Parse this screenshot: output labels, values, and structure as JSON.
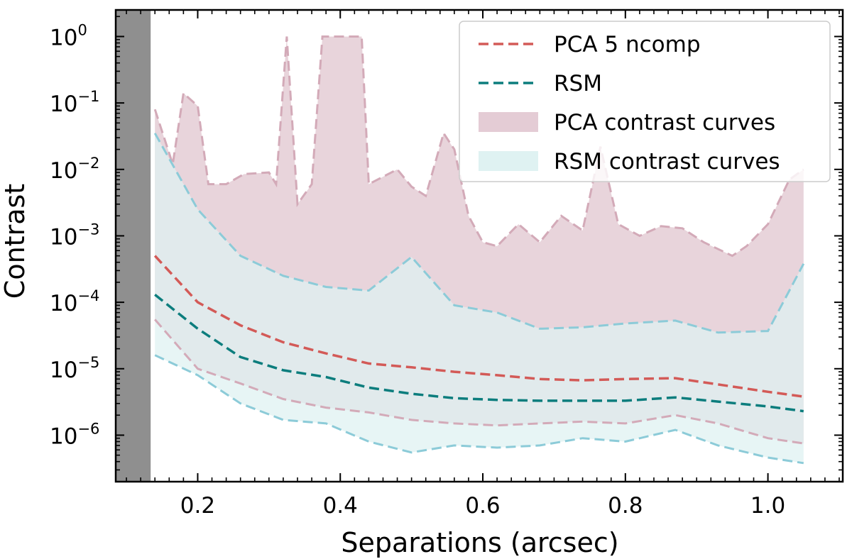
{
  "chart_data": {
    "type": "area",
    "xlabel": "Separations (arcsec)",
    "ylabel": "Contrast",
    "xlim": [
      0.085,
      1.105
    ],
    "ylim_log10": [
      -6.7,
      0.4
    ],
    "yscale": "log",
    "x_ticks": [
      {
        "value": 0.2,
        "label": "0.2"
      },
      {
        "value": 0.4,
        "label": "0.4"
      },
      {
        "value": 0.6,
        "label": "0.6"
      },
      {
        "value": 0.8,
        "label": "0.8"
      },
      {
        "value": 1.0,
        "label": "1.0"
      }
    ],
    "y_ticks": [
      {
        "exp": 0,
        "base": "10",
        "sup": "0"
      },
      {
        "exp": -1,
        "base": "10",
        "sup": "−1"
      },
      {
        "exp": -2,
        "base": "10",
        "sup": "−2"
      },
      {
        "exp": -3,
        "base": "10",
        "sup": "−3"
      },
      {
        "exp": -4,
        "base": "10",
        "sup": "−4"
      },
      {
        "exp": -5,
        "base": "10",
        "sup": "−5"
      },
      {
        "exp": -6,
        "base": "10",
        "sup": "−6"
      }
    ],
    "masked_region": {
      "x_from": 0.085,
      "x_to": 0.134,
      "color": "#8f8f8f"
    },
    "series": [
      {
        "name": "PCA 5 ncomp",
        "kind": "line",
        "color": "#d35a57",
        "x": [
          0.14,
          0.2,
          0.26,
          0.32,
          0.38,
          0.44,
          0.5,
          0.56,
          0.62,
          0.68,
          0.74,
          0.8,
          0.87,
          0.93,
          1.0,
          1.05
        ],
        "y": [
          0.0005,
          0.0001,
          4.5e-05,
          2.5e-05,
          1.7e-05,
          1.2e-05,
          1.05e-05,
          9e-06,
          8e-06,
          7e-06,
          6.7e-06,
          7e-06,
          7.2e-06,
          5.8e-06,
          4.5e-06,
          3.8e-06
        ]
      },
      {
        "name": "RSM",
        "kind": "line",
        "color": "#0c7d7d",
        "x": [
          0.14,
          0.2,
          0.26,
          0.32,
          0.38,
          0.44,
          0.5,
          0.56,
          0.62,
          0.68,
          0.74,
          0.8,
          0.87,
          0.93,
          1.0,
          1.05
        ],
        "y": [
          0.00013,
          4e-05,
          1.5e-05,
          9.5e-06,
          7.5e-06,
          5.2e-06,
          4.2e-06,
          3.6e-06,
          3.4e-06,
          3.3e-06,
          3.3e-06,
          3.3e-06,
          3.7e-06,
          3.2e-06,
          2.7e-06,
          2.3e-06
        ]
      },
      {
        "name": "PCA contrast curves",
        "kind": "band",
        "fill": "#e4ccd5",
        "edge": "#d3aab8",
        "upper": {
          "x": [
            0.14,
            0.165,
            0.18,
            0.2,
            0.215,
            0.24,
            0.265,
            0.3,
            0.31,
            0.325,
            0.34,
            0.36,
            0.375,
            0.385,
            0.43,
            0.44,
            0.48,
            0.5,
            0.52,
            0.545,
            0.56,
            0.58,
            0.6,
            0.62,
            0.65,
            0.68,
            0.71,
            0.74,
            0.765,
            0.79,
            0.82,
            0.85,
            0.88,
            0.91,
            0.95,
            0.97,
            1.0,
            1.03,
            1.05
          ],
          "y": [
            0.08,
            0.012,
            0.14,
            0.09,
            0.006,
            0.006,
            0.0085,
            0.009,
            0.006,
            1.0,
            0.003,
            0.006,
            1.0,
            1.0,
            1.0,
            0.006,
            0.01,
            0.0055,
            0.004,
            0.035,
            0.02,
            0.002,
            0.0008,
            0.0007,
            0.0015,
            0.0008,
            0.002,
            0.0012,
            0.022,
            0.0015,
            0.001,
            0.0014,
            0.0013,
            0.0008,
            0.0005,
            0.0007,
            0.0015,
            0.007,
            0.01
          ]
        },
        "lower": {
          "x": [
            0.14,
            0.2,
            0.26,
            0.32,
            0.38,
            0.44,
            0.5,
            0.56,
            0.62,
            0.68,
            0.74,
            0.8,
            0.87,
            0.93,
            1.0,
            1.05
          ],
          "y": [
            5.5e-05,
            1e-05,
            6e-06,
            3.5e-06,
            2.6e-06,
            2.2e-06,
            1.7e-06,
            1.5e-06,
            1.4e-06,
            1.5e-06,
            1.6e-06,
            1.5e-06,
            2e-06,
            1.5e-06,
            9e-07,
            7.5e-07
          ]
        }
      },
      {
        "name": "RSM contrast curves",
        "kind": "band",
        "fill": "#dff2f2",
        "edge": "#8ccbd8",
        "upper": {
          "x": [
            0.14,
            0.2,
            0.26,
            0.32,
            0.38,
            0.44,
            0.5,
            0.56,
            0.62,
            0.68,
            0.74,
            0.8,
            0.87,
            0.93,
            1.0,
            1.05
          ],
          "y": [
            0.035,
            0.0025,
            0.0005,
            0.00025,
            0.00017,
            0.00015,
            0.00048,
            9e-05,
            7e-05,
            4e-05,
            4.2e-05,
            4.8e-05,
            5.3e-05,
            3.5e-05,
            3.7e-05,
            0.00038
          ]
        },
        "lower": {
          "x": [
            0.14,
            0.2,
            0.26,
            0.32,
            0.38,
            0.44,
            0.5,
            0.56,
            0.62,
            0.68,
            0.74,
            0.8,
            0.87,
            0.93,
            1.0,
            1.05
          ],
          "y": [
            1.6e-05,
            8e-06,
            3e-06,
            1.7e-06,
            1.5e-06,
            8e-07,
            5.5e-07,
            7e-07,
            6.5e-07,
            7e-07,
            9e-07,
            8e-07,
            1.2e-06,
            7e-07,
            4.6e-07,
            3.8e-07
          ]
        }
      }
    ],
    "legend": {
      "position": "top-right",
      "entries": [
        {
          "label": "PCA 5 ncomp",
          "style": "dashed-line",
          "color": "#d35a57"
        },
        {
          "label": "RSM",
          "style": "dashed-line",
          "color": "#0c7d7d"
        },
        {
          "label": "PCA contrast curves",
          "style": "patch",
          "color": "#e4ccd5"
        },
        {
          "label": "RSM contrast curves",
          "style": "patch",
          "color": "#dff2f2"
        }
      ]
    }
  }
}
